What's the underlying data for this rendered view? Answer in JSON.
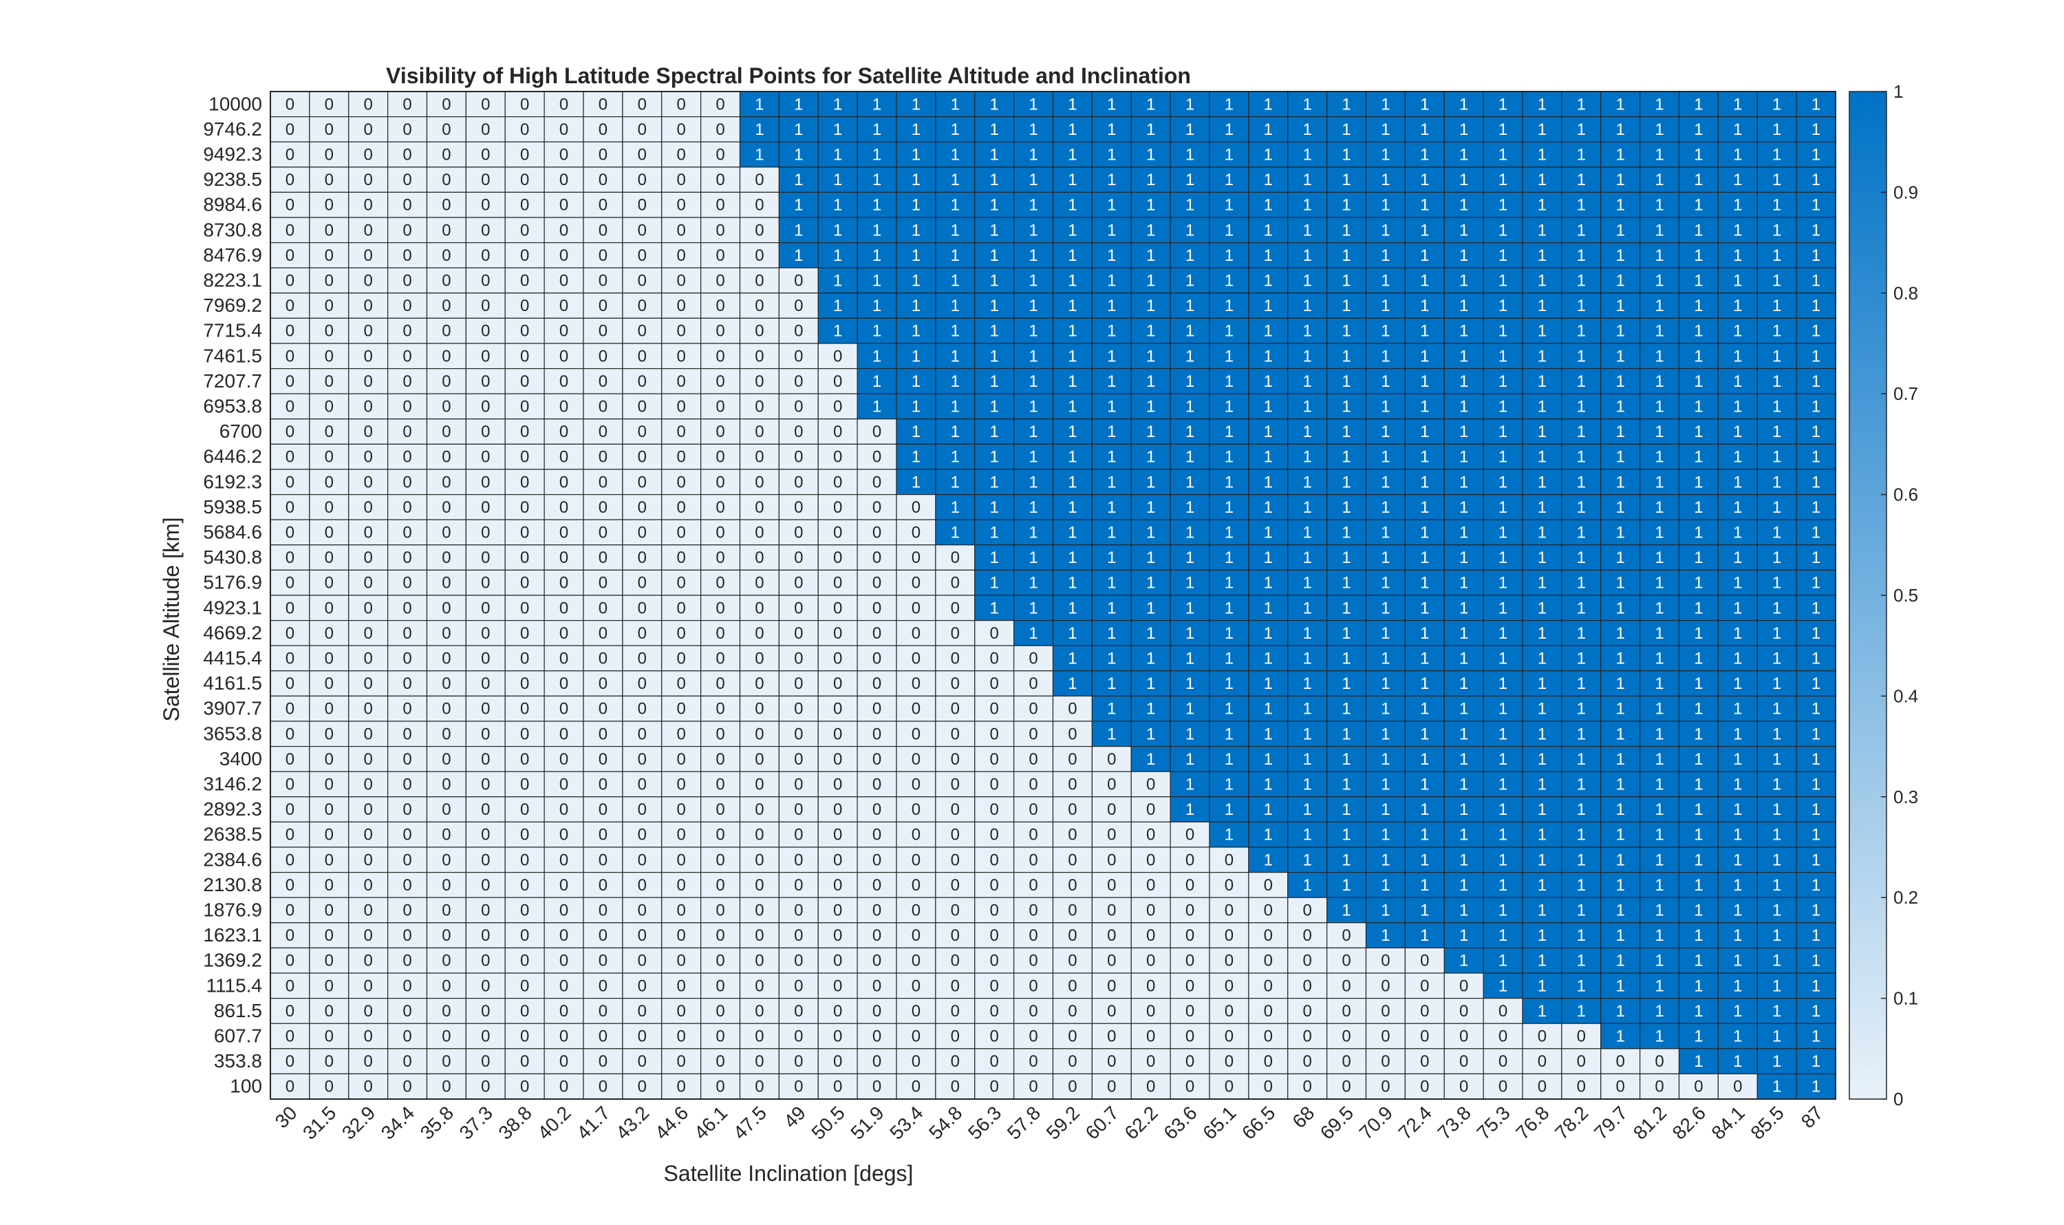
{
  "chart_data": {
    "type": "heatmap",
    "title": "Visibility of High Latitude Spectral Points for Satellite Altitude and Inclination",
    "xlabel": "Satellite Inclination [degs]",
    "ylabel": "Satellite Altitude [km]",
    "x_categories": [
      "30",
      "31.5",
      "32.9",
      "34.4",
      "35.8",
      "37.3",
      "38.8",
      "40.2",
      "41.7",
      "43.2",
      "44.6",
      "46.1",
      "47.5",
      "49",
      "50.5",
      "51.9",
      "53.4",
      "54.8",
      "56.3",
      "57.8",
      "59.2",
      "60.7",
      "62.2",
      "63.6",
      "65.1",
      "66.5",
      "68",
      "69.5",
      "70.9",
      "72.4",
      "73.8",
      "75.3",
      "76.8",
      "78.2",
      "79.7",
      "81.2",
      "82.6",
      "84.1",
      "85.5",
      "87"
    ],
    "y_categories": [
      "10000",
      "9746.2",
      "9492.3",
      "9238.5",
      "8984.6",
      "8730.8",
      "8476.9",
      "8223.1",
      "7969.2",
      "7715.4",
      "7461.5",
      "7207.7",
      "6953.8",
      "6700",
      "6446.2",
      "6192.3",
      "5938.5",
      "5684.6",
      "5430.8",
      "5176.9",
      "4923.1",
      "4669.2",
      "4415.4",
      "4161.5",
      "3907.7",
      "3653.8",
      "3400",
      "3146.2",
      "2892.3",
      "2638.5",
      "2384.6",
      "2130.8",
      "1876.9",
      "1623.1",
      "1369.2",
      "1115.4",
      "861.5",
      "607.7",
      "353.8",
      "100"
    ],
    "first_visible_column_index_per_row": [
      12,
      12,
      12,
      13,
      13,
      13,
      13,
      14,
      14,
      14,
      15,
      15,
      15,
      16,
      16,
      16,
      17,
      17,
      18,
      18,
      18,
      19,
      20,
      20,
      21,
      21,
      22,
      23,
      23,
      24,
      25,
      26,
      27,
      28,
      30,
      31,
      32,
      34,
      36,
      38
    ],
    "zlim": [
      0,
      1
    ],
    "colorbar_ticks": [
      "0",
      "0.1",
      "0.2",
      "0.3",
      "0.4",
      "0.5",
      "0.6",
      "0.7",
      "0.8",
      "0.9",
      "1"
    ],
    "colors": {
      "low": "#e8f1f9",
      "high": "#0072c6"
    }
  }
}
